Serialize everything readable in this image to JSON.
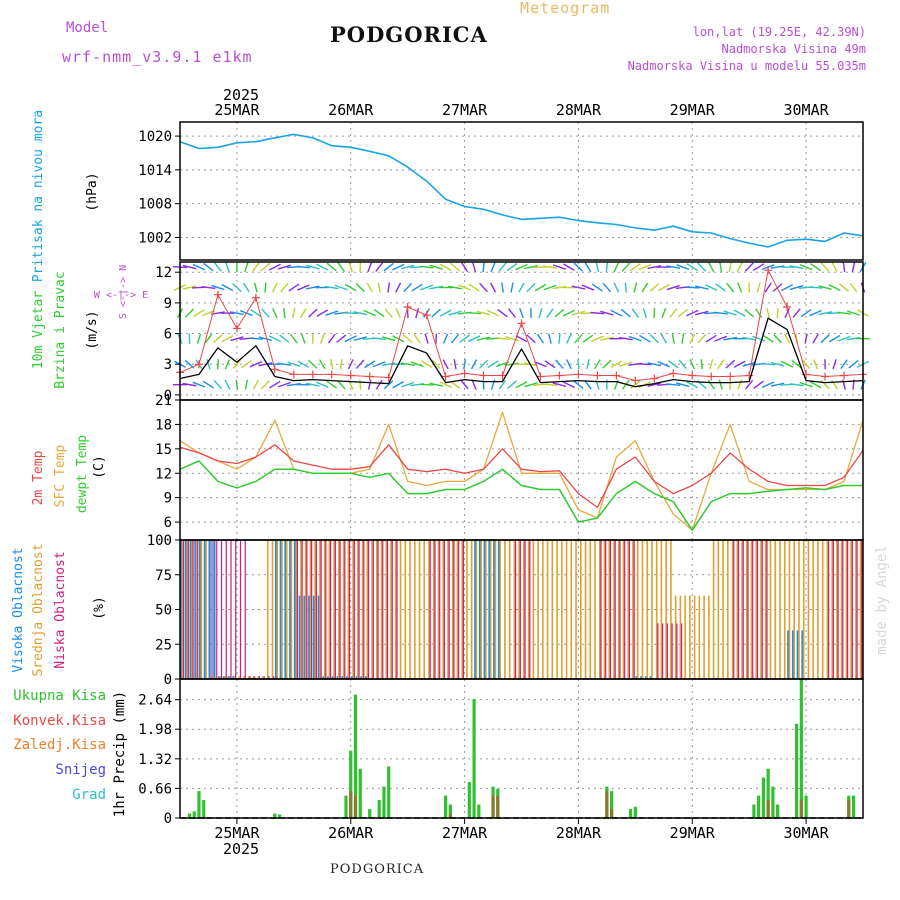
{
  "header": {
    "model_label": "Model",
    "model_name": "wrf-nmm_v3.9.1 e1km",
    "station": "PODGORICA",
    "meteogram_label": "Meteogram",
    "coords": "lon,lat (19.25E, 42.39N)",
    "elevation": "Nadmorska Visina 49m",
    "model_elevation": "Nadmorska Visina u modelu 55.035m"
  },
  "footer": {
    "station": "PODGORICA",
    "watermark": "made by Angel"
  },
  "time_axis": {
    "year_label": "2025",
    "day_labels": [
      "25MAR",
      "26MAR",
      "27MAR",
      "28MAR",
      "29MAR",
      "30MAR"
    ]
  },
  "panels": {
    "pressure": {
      "label": "Pritisak na nivou mora",
      "unit": "(hPa)"
    },
    "wind": {
      "label1": "10m Vjetar",
      "label2": "Brzina i Pravac",
      "unit": "(m/s)",
      "compass_ns": "S <-|-> N",
      "compass_we": "W <-|-> E"
    },
    "temp": {
      "label1": "2m Temp",
      "label2": "SFC Temp",
      "label3": "dewpt Temp",
      "unit": "(C)"
    },
    "cloud": {
      "label1": "Visoka Oblacnost",
      "label2": "Srednja Oblacnost",
      "label3": "Niska Oblacnost",
      "unit": "(%)"
    },
    "precip": {
      "legend": [
        "Ukupna Kisa",
        "Konvek.Kisa",
        "Zaledj.Kisa",
        "Snijeg",
        "Grad"
      ],
      "unit": "1hr Precip (mm)"
    }
  },
  "colors": {
    "pressure": "#1aa3e8",
    "temp2m": "#e84848",
    "sfc": "#e8a840",
    "dewpt": "#30cc30",
    "wind_speed": "#000000",
    "gust": "#e84848",
    "high_cloud": "#1a8ce8",
    "mid_cloud": "#e0a030",
    "low_cloud": "#cc2080",
    "total_rain": "#30c030",
    "conv_rain": "#e84848",
    "frz_rain": "#f08030",
    "snow": "#4848e8",
    "hail": "#30c0c0",
    "purple": "#b84fd6"
  },
  "chart_data": [
    {
      "type": "line",
      "title": "Pritisak na nivou mora",
      "ylabel": "(hPa)",
      "yticks": [
        1002,
        1008,
        1014,
        1020
      ],
      "ylim": [
        998,
        1022.5
      ],
      "x": [
        0,
        4,
        8,
        12,
        16,
        20,
        24,
        28,
        32,
        36,
        40,
        44,
        48,
        52,
        56,
        60,
        64,
        68,
        72,
        76,
        80,
        84,
        88,
        92,
        96,
        100,
        104,
        108,
        112,
        116,
        120,
        124,
        128,
        132,
        136,
        140,
        144
      ],
      "series": [
        {
          "values": [
            1019,
            1017.8,
            1018,
            1018.8,
            1019,
            1019.7,
            1020.3,
            1019.7,
            1018.3,
            1018,
            1017.3,
            1016.5,
            1014.5,
            1012,
            1008.8,
            1007.5,
            1007,
            1006,
            1005.2,
            1005.4,
            1005.6,
            1005,
            1004.6,
            1004.3,
            1003.7,
            1003.3,
            1004,
            1003,
            1002.8,
            1001.8,
            1001,
            1000.3,
            1001.5,
            1001.7,
            1001.3,
            1002.8,
            1002.3
          ]
        }
      ]
    },
    {
      "type": "line",
      "title": "10m Vjetar Brzina i Pravac",
      "ylabel": "(m/s)",
      "yticks": [
        0,
        3,
        6,
        9,
        12
      ],
      "ylim": [
        -0.5,
        13
      ],
      "x": [
        0,
        4,
        8,
        12,
        16,
        20,
        24,
        28,
        32,
        36,
        40,
        44,
        48,
        52,
        56,
        60,
        64,
        68,
        72,
        76,
        80,
        84,
        88,
        92,
        96,
        100,
        104,
        108,
        112,
        116,
        120,
        124,
        128,
        132,
        136,
        140,
        144
      ],
      "series": [
        {
          "name": "speed",
          "values": [
            1.6,
            2,
            4.6,
            3.2,
            4.8,
            1.8,
            1.4,
            1.5,
            1.4,
            1.3,
            1.2,
            1.1,
            4.8,
            4.1,
            1.2,
            1.5,
            1.3,
            1.3,
            4.5,
            1.2,
            1.3,
            1.4,
            1.3,
            1.3,
            0.8,
            1.1,
            1.5,
            1.3,
            1.2,
            1.2,
            1.3,
            7.5,
            6.4,
            1.4,
            1.2,
            1.3,
            1.4
          ]
        },
        {
          "name": "gust",
          "values": [
            2.2,
            3,
            9.8,
            6.5,
            9.5,
            2.5,
            2,
            2,
            2,
            1.9,
            1.8,
            1.7,
            8.6,
            7.8,
            1.8,
            2.1,
            1.9,
            1.9,
            7,
            1.8,
            1.9,
            2,
            1.9,
            1.9,
            1.4,
            1.6,
            2.1,
            1.9,
            1.8,
            1.8,
            1.9,
            12.2,
            8.6,
            2,
            1.8,
            1.9,
            2
          ]
        }
      ]
    },
    {
      "type": "line",
      "title": "2m Temp / SFC Temp / dewpt Temp",
      "ylabel": "(C)",
      "yticks": [
        6,
        9,
        12,
        15,
        18,
        21
      ],
      "ylim": [
        3.8,
        21
      ],
      "x": [
        0,
        4,
        8,
        12,
        16,
        20,
        24,
        28,
        32,
        36,
        40,
        44,
        48,
        52,
        56,
        60,
        64,
        68,
        72,
        76,
        80,
        84,
        88,
        92,
        96,
        100,
        104,
        108,
        112,
        116,
        120,
        124,
        128,
        132,
        136,
        140,
        144
      ],
      "series": [
        {
          "name": "2m Temp",
          "values": [
            15.2,
            14.5,
            13.5,
            13.2,
            14,
            15.5,
            13.5,
            13,
            12.5,
            12.5,
            12.8,
            15.5,
            12.5,
            12.2,
            12.5,
            12,
            12.5,
            15,
            12.5,
            12.2,
            12.3,
            9.5,
            7.8,
            12.5,
            14,
            11,
            9.5,
            10.5,
            12,
            14.5,
            12.5,
            11,
            10.5,
            10.5,
            10.5,
            11.5,
            14.8
          ]
        },
        {
          "name": "SFC Temp",
          "values": [
            16,
            14.5,
            13.5,
            12.5,
            14,
            18.5,
            12.5,
            12,
            12,
            12,
            12.5,
            18,
            11,
            10.5,
            11,
            11,
            12.5,
            19.5,
            12,
            12,
            12,
            7.5,
            6.5,
            14,
            16,
            11,
            7,
            5,
            12,
            18,
            11,
            10,
            10,
            10,
            10,
            11,
            18.5
          ]
        },
        {
          "name": "dewpt Temp",
          "values": [
            12.5,
            13.5,
            11,
            10.2,
            11,
            12.5,
            12.5,
            12,
            12,
            12,
            11.5,
            12,
            9.5,
            9.5,
            10,
            10,
            11,
            12.5,
            10.5,
            10,
            10,
            6,
            6.5,
            9.5,
            11,
            9.5,
            8.5,
            5,
            8.5,
            9.5,
            9.5,
            9.8,
            10,
            10.2,
            10,
            10.5,
            10.5
          ]
        }
      ]
    },
    {
      "type": "bar",
      "title": "Visoka / Srednja / Niska Oblacnost",
      "ylabel": "(%)",
      "yticks": [
        0,
        25,
        50,
        75,
        100
      ],
      "ylim": [
        0,
        100
      ],
      "x_range": [
        0,
        144
      ],
      "series": [
        {
          "name": "Visoka Oblacnost",
          "segments": [
            [
              0,
              8,
              100
            ],
            [
              8,
              12,
              2
            ],
            [
              20,
              25,
              100
            ],
            [
              25,
              30,
              60
            ],
            [
              30,
              36,
              2
            ],
            [
              36,
              40,
              2
            ],
            [
              62,
              68,
              100
            ],
            [
              96,
              100,
              2
            ],
            [
              128,
              132,
              35
            ]
          ]
        },
        {
          "name": "Srednja Oblacnost",
          "segments": [
            [
              0,
              6,
              100
            ],
            [
              6,
              18,
              2
            ],
            [
              18,
              25,
              100
            ],
            [
              25,
              30,
              100
            ],
            [
              30,
              44,
              100
            ],
            [
              44,
              62,
              100
            ],
            [
              62,
              88,
              100
            ],
            [
              88,
              104,
              100
            ],
            [
              104,
              112,
              60
            ],
            [
              112,
              126,
              100
            ],
            [
              126,
              136,
              100
            ],
            [
              136,
              144,
              100
            ]
          ]
        },
        {
          "name": "Niska Oblacnost",
          "segments": [
            [
              0,
              4,
              100
            ],
            [
              6,
              14,
              100
            ],
            [
              14,
              20,
              2
            ],
            [
              24,
              28,
              100
            ],
            [
              28,
              40,
              100
            ],
            [
              40,
              46,
              100
            ],
            [
              52,
              60,
              100
            ],
            [
              70,
              74,
              100
            ],
            [
              88,
              96,
              100
            ],
            [
              100,
              106,
              40
            ],
            [
              116,
              124,
              100
            ],
            [
              136,
              144,
              100
            ]
          ]
        }
      ]
    },
    {
      "type": "bar",
      "title": "1hr Precip",
      "ylabel": "1hr Precip (mm)",
      "yticks": [
        0,
        0.66,
        1.32,
        1.98,
        2.64
      ],
      "ylim": [
        0,
        3.1
      ],
      "x_range": [
        0,
        144
      ],
      "series": [
        {
          "name": "Ukupna Kisa",
          "bars": [
            [
              2,
              0.1
            ],
            [
              3,
              0.15
            ],
            [
              4,
              0.6
            ],
            [
              5,
              0.4
            ],
            [
              20,
              0.1
            ],
            [
              21,
              0.08
            ],
            [
              35,
              0.5
            ],
            [
              36,
              1.5
            ],
            [
              37,
              2.75
            ],
            [
              38,
              1.1
            ],
            [
              40,
              0.2
            ],
            [
              42,
              0.4
            ],
            [
              43,
              0.7
            ],
            [
              44,
              1.15
            ],
            [
              56,
              0.5
            ],
            [
              57,
              0.3
            ],
            [
              61,
              0.8
            ],
            [
              62,
              2.65
            ],
            [
              63,
              0.3
            ],
            [
              66,
              0.7
            ],
            [
              67,
              0.65
            ],
            [
              90,
              0.7
            ],
            [
              91,
              0.6
            ],
            [
              95,
              0.2
            ],
            [
              96,
              0.25
            ],
            [
              121,
              0.3
            ],
            [
              122,
              0.5
            ],
            [
              123,
              0.9
            ],
            [
              124,
              1.1
            ],
            [
              125,
              0.7
            ],
            [
              126,
              0.3
            ],
            [
              130,
              2.1
            ],
            [
              131,
              3.1
            ],
            [
              132,
              0.5
            ],
            [
              141,
              0.5
            ],
            [
              142,
              0.5
            ]
          ]
        },
        {
          "name": "Konvek.Kisa",
          "bars": [
            [
              36,
              0.6
            ],
            [
              37,
              0.5
            ],
            [
              57,
              0.1
            ],
            [
              66,
              0.5
            ],
            [
              67,
              0.5
            ],
            [
              90,
              0.6
            ],
            [
              91,
              0.2
            ],
            [
              124,
              0.4
            ],
            [
              131,
              0.4
            ],
            [
              141,
              0.4
            ]
          ]
        },
        {
          "name": "Zaledj.Kisa",
          "bars": []
        },
        {
          "name": "Snijeg",
          "bars": []
        },
        {
          "name": "Grad",
          "bars": []
        }
      ]
    }
  ]
}
